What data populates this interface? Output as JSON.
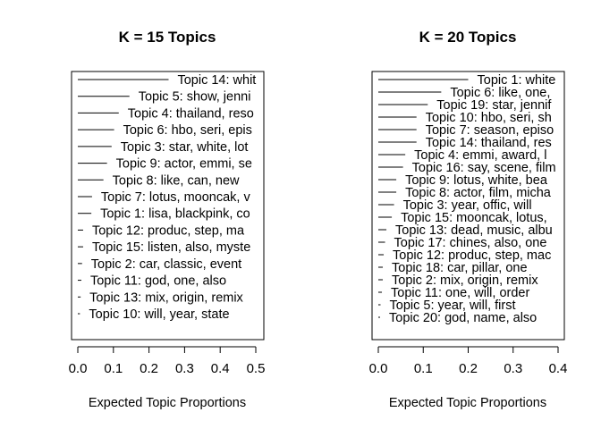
{
  "chart_data": [
    {
      "type": "bar",
      "title": "K = 15 Topics",
      "xlabel": "Expected Topic Proportions",
      "xlim": [
        0,
        0.5
      ],
      "xticks": [
        "0.0",
        "0.1",
        "0.2",
        "0.3",
        "0.4",
        "0.5"
      ],
      "bars": [
        {
          "label": "Topic 14: whit",
          "value": 0.255
        },
        {
          "label": "Topic 5: show, jenni",
          "value": 0.145
        },
        {
          "label": "Topic 4: thailand, reso",
          "value": 0.115
        },
        {
          "label": "Topic 6: hbo, seri, epis",
          "value": 0.102
        },
        {
          "label": "Topic 3: star, white, lot",
          "value": 0.095
        },
        {
          "label": "Topic 9: actor, emmi, se",
          "value": 0.082
        },
        {
          "label": "Topic 8: like, can, new",
          "value": 0.072
        },
        {
          "label": "Topic 7: lotus, mooncak, v",
          "value": 0.04
        },
        {
          "label": "Topic 1: lisa, blackpink, co",
          "value": 0.038
        },
        {
          "label": "Topic 12: produc, step, ma",
          "value": 0.015
        },
        {
          "label": "Topic 15: listen, also, myste",
          "value": 0.015
        },
        {
          "label": "Topic 2: car, classic, event",
          "value": 0.012
        },
        {
          "label": "Topic 11: god, one, also",
          "value": 0.01
        },
        {
          "label": "Topic 13: mix, origin, remix",
          "value": 0.008
        },
        {
          "label": "Topic 10: will, year, state",
          "value": 0.006
        }
      ]
    },
    {
      "type": "bar",
      "title": "K = 20 Topics",
      "xlabel": "Expected Topic Proportions",
      "xlim": [
        0,
        0.4
      ],
      "xticks": [
        "0.0",
        "0.1",
        "0.2",
        "0.3",
        "0.4"
      ],
      "bars": [
        {
          "label": "Topic 1: white",
          "value": 0.2
        },
        {
          "label": "Topic 6: like, one,",
          "value": 0.14
        },
        {
          "label": "Topic 19: star, jennif",
          "value": 0.11
        },
        {
          "label": "Topic 10: hbo, seri, sh",
          "value": 0.085
        },
        {
          "label": "Topic 7: season, episo",
          "value": 0.085
        },
        {
          "label": "Topic 14: thailand, res",
          "value": 0.085
        },
        {
          "label": "Topic 4: emmi, award, l",
          "value": 0.06
        },
        {
          "label": "Topic 16: say, scene, film",
          "value": 0.055
        },
        {
          "label": "Topic 9: lotus, white, bea",
          "value": 0.04
        },
        {
          "label": "Topic 8: actor, film, micha",
          "value": 0.04
        },
        {
          "label": "Topic 3: year, offic, will",
          "value": 0.035
        },
        {
          "label": "Topic 15: mooncak, lotus,",
          "value": 0.03
        },
        {
          "label": "Topic 13: dead, music, albu",
          "value": 0.018
        },
        {
          "label": "Topic 17: chines, also, one",
          "value": 0.015
        },
        {
          "label": "Topic 12: produc, step, mac",
          "value": 0.012
        },
        {
          "label": "Topic 18: car, pillar, one",
          "value": 0.01
        },
        {
          "label": "Topic 2: mix, origin, remix",
          "value": 0.01
        },
        {
          "label": "Topic 11: one, will, order",
          "value": 0.008
        },
        {
          "label": "Topic 5: year, will, first",
          "value": 0.005
        },
        {
          "label": "Topic 20: god, name, also",
          "value": 0.004
        }
      ]
    }
  ]
}
